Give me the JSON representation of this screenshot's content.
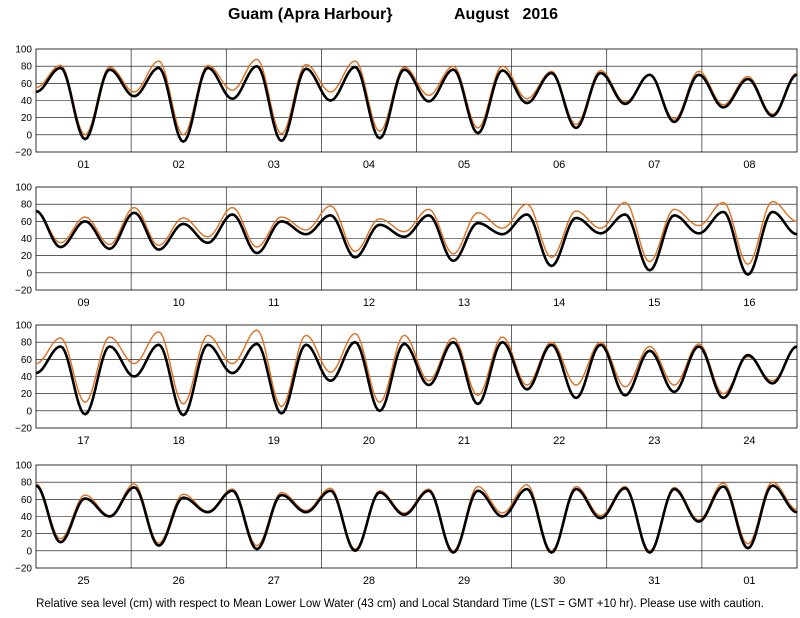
{
  "title": {
    "location": "Guam (Apra Harbour}",
    "period": "August   2016"
  },
  "footnote": "Relative sea level (cm) with respect to Mean Lower Low Water (43 cm) and Local Standard Time (LST = GMT +10 hr). Please use with caution.",
  "colors": {
    "observed": "#000000",
    "predicted": "#e07020",
    "grid": "#000000"
  },
  "chart_data": [
    {
      "type": "line",
      "title": "",
      "xlabel": "",
      "ylabel": "",
      "ylim": [
        -20,
        100
      ],
      "yticks": [
        "100",
        "80",
        "60",
        "40",
        "20",
        "0",
        "−20"
      ],
      "days": [
        "01",
        "02",
        "03",
        "04",
        "05",
        "06",
        "07",
        "08"
      ],
      "grid": true,
      "series": [
        {
          "values": [
            50,
            78,
            -5,
            76,
            45,
            78,
            -8,
            78,
            42,
            80,
            -7,
            77,
            40,
            79,
            -4,
            76,
            39,
            76,
            2,
            75,
            37,
            72,
            8,
            72,
            36,
            70,
            15,
            70,
            32,
            65,
            22,
            70
          ]
        },
        {
          "values": [
            55,
            81,
            0,
            79,
            50,
            86,
            0,
            81,
            52,
            88,
            1,
            82,
            50,
            86,
            4,
            79,
            46,
            80,
            8,
            80,
            42,
            74,
            12,
            75,
            38,
            70,
            18,
            74,
            35,
            68,
            24,
            72
          ]
        }
      ]
    },
    {
      "type": "line",
      "title": "",
      "xlabel": "",
      "ylabel": "",
      "ylim": [
        -20,
        100
      ],
      "yticks": [
        "100",
        "80",
        "60",
        "40",
        "20",
        "0",
        "−20"
      ],
      "days": [
        "09",
        "10",
        "11",
        "12",
        "13",
        "14",
        "15",
        "16"
      ],
      "grid": true,
      "series": [
        {
          "values": [
            72,
            30,
            60,
            28,
            70,
            27,
            57,
            35,
            68,
            23,
            60,
            45,
            67,
            18,
            56,
            42,
            67,
            14,
            58,
            45,
            68,
            8,
            64,
            46,
            68,
            3,
            67,
            46,
            71,
            -2,
            71,
            45
          ]
        },
        {
          "values": [
            72,
            35,
            65,
            33,
            76,
            32,
            64,
            42,
            76,
            30,
            65,
            50,
            78,
            25,
            63,
            48,
            74,
            22,
            70,
            52,
            80,
            18,
            72,
            52,
            82,
            13,
            74,
            55,
            82,
            10,
            83,
            60
          ]
        }
      ]
    },
    {
      "type": "line",
      "title": "",
      "xlabel": "",
      "ylabel": "",
      "ylim": [
        -20,
        100
      ],
      "yticks": [
        "100",
        "80",
        "60",
        "40",
        "20",
        "0",
        "−20"
      ],
      "days": [
        "17",
        "18",
        "19",
        "20",
        "21",
        "22",
        "23",
        "24"
      ],
      "grid": true,
      "series": [
        {
          "values": [
            44,
            75,
            -4,
            75,
            40,
            77,
            -5,
            77,
            44,
            78,
            -3,
            77,
            35,
            80,
            0,
            78,
            30,
            80,
            8,
            80,
            25,
            77,
            15,
            77,
            18,
            70,
            22,
            75,
            15,
            65,
            32,
            75
          ]
        },
        {
          "values": [
            55,
            85,
            10,
            86,
            55,
            92,
            8,
            88,
            55,
            94,
            5,
            88,
            45,
            90,
            10,
            88,
            35,
            85,
            18,
            86,
            30,
            80,
            30,
            80,
            28,
            75,
            30,
            78,
            20,
            63,
            35,
            74
          ]
        }
      ]
    },
    {
      "type": "line",
      "title": "",
      "xlabel": "",
      "ylabel": "",
      "ylim": [
        -20,
        100
      ],
      "yticks": [
        "100",
        "80",
        "60",
        "40",
        "20",
        "0",
        "−20"
      ],
      "days": [
        "25",
        "26",
        "27",
        "28",
        "29",
        "30",
        "31",
        "01"
      ],
      "grid": true,
      "series": [
        {
          "values": [
            76,
            10,
            61,
            40,
            74,
            6,
            62,
            45,
            70,
            2,
            65,
            45,
            70,
            0,
            68,
            42,
            70,
            -2,
            70,
            40,
            72,
            -2,
            72,
            38,
            73,
            -2,
            72,
            34,
            75,
            3,
            76,
            45
          ]
        },
        {
          "values": [
            78,
            14,
            65,
            41,
            78,
            9,
            66,
            46,
            72,
            6,
            68,
            47,
            73,
            2,
            70,
            44,
            72,
            0,
            75,
            44,
            77,
            0,
            75,
            41,
            75,
            0,
            74,
            36,
            79,
            8,
            80,
            48
          ]
        }
      ]
    }
  ]
}
